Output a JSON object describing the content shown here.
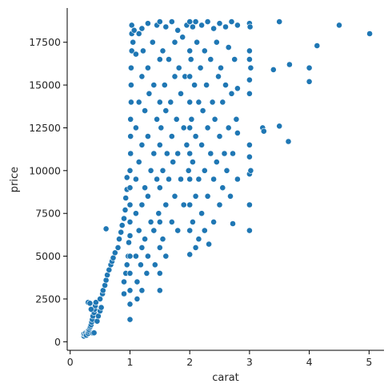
{
  "chart_data": {
    "type": "scatter",
    "title": "",
    "xlabel": "carat",
    "ylabel": "price",
    "xlim": [
      -0.05,
      5.25
    ],
    "ylim": [
      -500,
      19500
    ],
    "xticks": [
      0,
      1,
      2,
      3,
      4,
      5
    ],
    "xtick_labels": [
      "0",
      "1",
      "2",
      "3",
      "4",
      "5"
    ],
    "yticks": [
      0,
      2500,
      5000,
      7500,
      10000,
      12500,
      15000,
      17500
    ],
    "ytick_labels": [
      "0",
      "2500",
      "5000",
      "7500",
      "10000",
      "12500",
      "15000",
      "17500"
    ],
    "grid": false,
    "legend": "none",
    "colors": {
      "points": "#1f77b4",
      "point_edge": "#ffffff",
      "axes": "#000000",
      "text": "#262626"
    },
    "series": [
      {
        "points": [
          [
            0.23,
            330
          ],
          [
            0.23,
            450
          ],
          [
            0.25,
            420
          ],
          [
            0.26,
            520
          ],
          [
            0.27,
            380
          ],
          [
            0.29,
            560
          ],
          [
            0.3,
            480
          ],
          [
            0.3,
            650
          ],
          [
            0.31,
            600
          ],
          [
            0.32,
            700
          ],
          [
            0.33,
            820
          ],
          [
            0.34,
            900
          ],
          [
            0.35,
            1000
          ],
          [
            0.36,
            1150
          ],
          [
            0.37,
            1300
          ],
          [
            0.38,
            1500
          ],
          [
            0.4,
            1700
          ],
          [
            0.41,
            1900
          ],
          [
            0.42,
            2100
          ],
          [
            0.43,
            2300
          ],
          [
            0.3,
            2300
          ],
          [
            0.33,
            2250
          ],
          [
            0.35,
            1900
          ],
          [
            0.38,
            500
          ],
          [
            0.4,
            520
          ],
          [
            0.45,
            1200
          ],
          [
            0.47,
            1500
          ],
          [
            0.5,
            1800
          ],
          [
            0.5,
            2500
          ],
          [
            0.52,
            2000
          ],
          [
            0.54,
            2800
          ],
          [
            0.55,
            3000
          ],
          [
            0.58,
            3300
          ],
          [
            0.6,
            3600
          ],
          [
            0.62,
            3900
          ],
          [
            0.65,
            4200
          ],
          [
            0.68,
            4500
          ],
          [
            0.7,
            4700
          ],
          [
            0.72,
            4900
          ],
          [
            0.75,
            5200
          ],
          [
            0.6,
            6600
          ],
          [
            0.8,
            5500
          ],
          [
            0.82,
            6000
          ],
          [
            0.85,
            6400
          ],
          [
            0.87,
            6800
          ],
          [
            0.9,
            7200
          ],
          [
            0.92,
            7700
          ],
          [
            0.93,
            8400
          ],
          [
            0.95,
            8900
          ],
          [
            0.95,
            9600
          ],
          [
            0.9,
            2800
          ],
          [
            0.9,
            3500
          ],
          [
            0.93,
            4000
          ],
          [
            0.95,
            4500
          ],
          [
            0.97,
            5000
          ],
          [
            0.98,
            5800
          ],
          [
            1.0,
            6200
          ],
          [
            1.0,
            7000
          ],
          [
            1.0,
            8000
          ],
          [
            1.0,
            9000
          ],
          [
            1.0,
            10000
          ],
          [
            1.01,
            11000
          ],
          [
            1.01,
            12000
          ],
          [
            1.01,
            13000
          ],
          [
            1.02,
            14000
          ],
          [
            1.02,
            15000
          ],
          [
            1.02,
            16000
          ],
          [
            1.03,
            17000
          ],
          [
            1.03,
            18000
          ],
          [
            1.03,
            18500
          ],
          [
            1.0,
            1300
          ],
          [
            1.0,
            2200
          ],
          [
            1.0,
            3000
          ],
          [
            1.0,
            4000
          ],
          [
            1.0,
            5000
          ],
          [
            1.05,
            17500
          ],
          [
            1.07,
            18200
          ],
          [
            1.1,
            16800
          ],
          [
            1.1,
            12500
          ],
          [
            1.1,
            9500
          ],
          [
            1.1,
            7500
          ],
          [
            1.1,
            5000
          ],
          [
            1.12,
            3500
          ],
          [
            1.12,
            2500
          ],
          [
            1.15,
            18000
          ],
          [
            1.15,
            14000
          ],
          [
            1.15,
            10500
          ],
          [
            1.15,
            6500
          ],
          [
            1.18,
            4500
          ],
          [
            1.2,
            18300
          ],
          [
            1.2,
            15500
          ],
          [
            1.2,
            11500
          ],
          [
            1.2,
            8000
          ],
          [
            1.2,
            5500
          ],
          [
            1.2,
            3000
          ],
          [
            1.22,
            17000
          ],
          [
            1.25,
            13500
          ],
          [
            1.25,
            9000
          ],
          [
            1.25,
            6000
          ],
          [
            1.28,
            4000
          ],
          [
            1.3,
            18600
          ],
          [
            1.3,
            16000
          ],
          [
            1.3,
            12000
          ],
          [
            1.3,
            8500
          ],
          [
            1.3,
            5000
          ],
          [
            1.32,
            14500
          ],
          [
            1.35,
            10000
          ],
          [
            1.35,
            7000
          ],
          [
            1.38,
            17500
          ],
          [
            1.4,
            15000
          ],
          [
            1.4,
            11000
          ],
          [
            1.4,
            6500
          ],
          [
            1.42,
            4500
          ],
          [
            1.45,
            18500
          ],
          [
            1.45,
            13000
          ],
          [
            1.45,
            9500
          ],
          [
            1.48,
            7500
          ],
          [
            1.5,
            18700
          ],
          [
            1.5,
            16500
          ],
          [
            1.5,
            14000
          ],
          [
            1.5,
            11500
          ],
          [
            1.5,
            9000
          ],
          [
            1.5,
            7000
          ],
          [
            1.5,
            5500
          ],
          [
            1.5,
            4000
          ],
          [
            1.5,
            3000
          ],
          [
            1.52,
            12500
          ],
          [
            1.55,
            17000
          ],
          [
            1.55,
            10000
          ],
          [
            1.55,
            6000
          ],
          [
            1.58,
            15000
          ],
          [
            1.6,
            18400
          ],
          [
            1.6,
            13500
          ],
          [
            1.6,
            8000
          ],
          [
            1.6,
            5000
          ],
          [
            1.62,
            11000
          ],
          [
            1.65,
            16500
          ],
          [
            1.65,
            9500
          ],
          [
            1.68,
            14000
          ],
          [
            1.7,
            18700
          ],
          [
            1.7,
            12000
          ],
          [
            1.7,
            7000
          ],
          [
            1.72,
            10500
          ],
          [
            1.75,
            17500
          ],
          [
            1.75,
            15500
          ],
          [
            1.75,
            8500
          ],
          [
            1.78,
            13000
          ],
          [
            1.8,
            18200
          ],
          [
            1.8,
            11000
          ],
          [
            1.8,
            6500
          ],
          [
            1.82,
            16000
          ],
          [
            1.85,
            14500
          ],
          [
            1.85,
            9500
          ],
          [
            1.88,
            17800
          ],
          [
            1.9,
            12500
          ],
          [
            1.9,
            8000
          ],
          [
            1.92,
            15500
          ],
          [
            1.95,
            18500
          ],
          [
            1.95,
            11500
          ],
          [
            1.98,
            10000
          ],
          [
            2.0,
            18700
          ],
          [
            2.0,
            17000
          ],
          [
            2.0,
            15500
          ],
          [
            2.0,
            14000
          ],
          [
            2.0,
            12500
          ],
          [
            2.0,
            11000
          ],
          [
            2.0,
            9500
          ],
          [
            2.0,
            8000
          ],
          [
            2.0,
            6500
          ],
          [
            2.0,
            5100
          ],
          [
            2.02,
            16500
          ],
          [
            2.03,
            13000
          ],
          [
            2.05,
            18400
          ],
          [
            2.05,
            10500
          ],
          [
            2.05,
            7000
          ],
          [
            2.08,
            15000
          ],
          [
            2.1,
            18700
          ],
          [
            2.1,
            12000
          ],
          [
            2.1,
            8500
          ],
          [
            2.1,
            5500
          ],
          [
            2.12,
            17500
          ],
          [
            2.15,
            14000
          ],
          [
            2.15,
            9500
          ],
          [
            2.15,
            6000
          ],
          [
            2.18,
            16000
          ],
          [
            2.2,
            18500
          ],
          [
            2.2,
            11500
          ],
          [
            2.2,
            7500
          ],
          [
            2.22,
            13500
          ],
          [
            2.25,
            17000
          ],
          [
            2.25,
            10000
          ],
          [
            2.25,
            6500
          ],
          [
            2.28,
            15000
          ],
          [
            2.3,
            18700
          ],
          [
            2.3,
            12500
          ],
          [
            2.3,
            8500
          ],
          [
            2.32,
            5700
          ],
          [
            2.35,
            16500
          ],
          [
            2.35,
            11000
          ],
          [
            2.38,
            14000
          ],
          [
            2.4,
            18300
          ],
          [
            2.4,
            9500
          ],
          [
            2.4,
            7000
          ],
          [
            2.42,
            13000
          ],
          [
            2.45,
            17500
          ],
          [
            2.45,
            10500
          ],
          [
            2.48,
            15500
          ],
          [
            2.5,
            18600
          ],
          [
            2.5,
            12000
          ],
          [
            2.5,
            8000
          ],
          [
            2.52,
            16000
          ],
          [
            2.55,
            14000
          ],
          [
            2.55,
            9000
          ],
          [
            2.58,
            11000
          ],
          [
            2.6,
            18400
          ],
          [
            2.6,
            15000
          ],
          [
            2.62,
            10000
          ],
          [
            2.65,
            17200
          ],
          [
            2.65,
            12500
          ],
          [
            2.68,
            8500
          ],
          [
            2.7,
            18700
          ],
          [
            2.7,
            14500
          ],
          [
            2.72,
            11000
          ],
          [
            2.72,
            6900
          ],
          [
            2.75,
            16500
          ],
          [
            2.78,
            13000
          ],
          [
            2.8,
            18500
          ],
          [
            2.8,
            9500
          ],
          [
            2.8,
            14800
          ],
          [
            2.8,
            12200
          ],
          [
            3.0,
            18600
          ],
          [
            3.0,
            17000
          ],
          [
            3.0,
            16500
          ],
          [
            3.0,
            15300
          ],
          [
            3.0,
            14500
          ],
          [
            3.0,
            11500
          ],
          [
            3.0,
            10800
          ],
          [
            3.0,
            9800
          ],
          [
            3.0,
            8000
          ],
          [
            3.0,
            6500
          ],
          [
            3.01,
            18400
          ],
          [
            3.02,
            16000
          ],
          [
            3.02,
            10000
          ],
          [
            3.22,
            12500
          ],
          [
            3.24,
            12300
          ],
          [
            3.4,
            15900
          ],
          [
            3.5,
            18700
          ],
          [
            3.5,
            12600
          ],
          [
            3.65,
            11700
          ],
          [
            3.67,
            16200
          ],
          [
            4.0,
            16000
          ],
          [
            4.0,
            15200
          ],
          [
            4.13,
            17300
          ],
          [
            4.5,
            18500
          ],
          [
            5.01,
            18000
          ]
        ]
      }
    ]
  }
}
